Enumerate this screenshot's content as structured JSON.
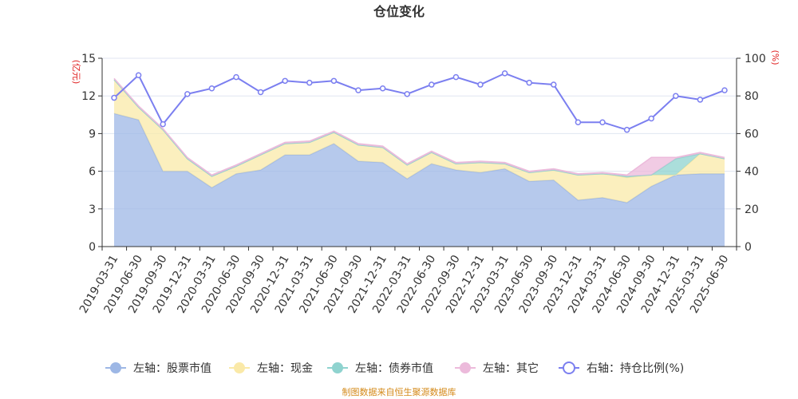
{
  "chart_data": {
    "type": "area",
    "title": "仓位变化",
    "left_axis_unit": "(亿元)",
    "right_axis_unit": "(%)",
    "ylim_left": [
      0,
      15
    ],
    "yticks_left": [
      "0",
      "3",
      "6",
      "9",
      "12",
      "15"
    ],
    "ylim_right": [
      0,
      100
    ],
    "yticks_right": [
      "0",
      "20",
      "40",
      "60",
      "80",
      "100"
    ],
    "categories": [
      "2019-03-31",
      "2019-06-30",
      "2019-09-30",
      "2019-12-31",
      "2020-03-31",
      "2020-06-30",
      "2020-09-30",
      "2020-12-31",
      "2021-03-31",
      "2021-06-30",
      "2021-09-30",
      "2021-12-31",
      "2022-03-31",
      "2022-06-30",
      "2022-09-30",
      "2022-12-31",
      "2023-03-31",
      "2023-06-30",
      "2023-09-30",
      "2023-12-31",
      "2024-03-31",
      "2024-06-30",
      "2024-09-30",
      "2024-12-31",
      "2025-03-31",
      "2025-06-30"
    ],
    "series": [
      {
        "name": "左轴：股票市值",
        "axis": "left",
        "color": "#9db7e5",
        "values": [
          10.6,
          10.1,
          6.0,
          6.0,
          4.7,
          5.8,
          6.1,
          7.3,
          7.3,
          8.2,
          6.8,
          6.7,
          5.4,
          6.6,
          6.1,
          5.9,
          6.2,
          5.2,
          5.3,
          3.7,
          3.9,
          3.5,
          4.8,
          5.7,
          5.8,
          5.8
        ]
      },
      {
        "name": "左轴：现金",
        "axis": "left",
        "color": "#fae9a8",
        "values": [
          2.7,
          1.0,
          3.3,
          1.0,
          0.9,
          0.6,
          1.2,
          0.9,
          1.0,
          0.9,
          1.3,
          1.2,
          1.1,
          0.9,
          0.5,
          0.8,
          0.4,
          0.7,
          0.8,
          2.0,
          1.9,
          2.0,
          0.9,
          0.0,
          1.6,
          1.2
        ]
      },
      {
        "name": "左轴：债券市值",
        "axis": "left",
        "color": "#8fd3cf",
        "values": [
          0,
          0,
          0,
          0,
          0,
          0,
          0,
          0,
          0,
          0,
          0,
          0,
          0,
          0,
          0,
          0,
          0,
          0,
          0,
          0,
          0,
          0.1,
          0,
          1.3,
          0,
          0
        ]
      },
      {
        "name": "左轴：其它",
        "axis": "left",
        "color": "#ecbadb",
        "values": [
          0.1,
          0.1,
          0.1,
          0.1,
          0.1,
          0.1,
          0.1,
          0.1,
          0.1,
          0.1,
          0.1,
          0.1,
          0.1,
          0.1,
          0.1,
          0.1,
          0.1,
          0.1,
          0.1,
          0.1,
          0.1,
          0.1,
          1.4,
          0.1,
          0.1,
          0.1
        ]
      },
      {
        "name": "右轴：持仓比例(%)",
        "axis": "right",
        "color": "#7b7ff0",
        "values": [
          79,
          91,
          65,
          81,
          84,
          90,
          82,
          88,
          87,
          88,
          83,
          84,
          81,
          86,
          90,
          86,
          92,
          87,
          86,
          66,
          66,
          62,
          68,
          80,
          78,
          83
        ]
      }
    ],
    "legend_position": "bottom",
    "source_note": "制图数据来自恒生聚源数据库"
  }
}
